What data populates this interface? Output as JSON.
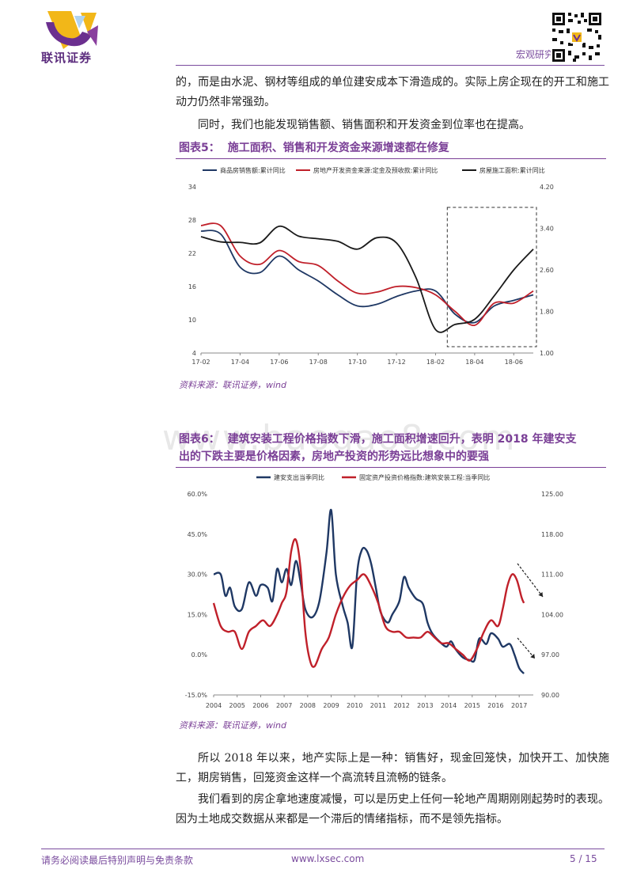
{
  "header": {
    "logo_text": "联讯证券",
    "section": "宏观研究"
  },
  "paragraphs": {
    "p1": "的，而是由水泥、钢材等组成的单位建安成本下滑造成的。实际上房企现在的开工和施工动力仍然非常强劲。",
    "p2": "同时，我们也能发现销售额、销售面积和开发资金到位率也在提高。",
    "p3": "所以 2018 年以来，地产实际上是一种：销售好，现金回笼快，加快开工、加快施工，期房销售，回笼资金这样一个高流转且流畅的链条。",
    "p4": "我们看到的房企拿地速度减慢，可以是历史上任何一轮地产周期刚刚起势时的表现。因为土地成交数据从来都是一个滞后的情绪指标，而不是领先指标。"
  },
  "figure5": {
    "label": "图表5：",
    "title": "施工面积、销售和开发资金来源增速都在修复",
    "source": "资料来源：联讯证券，wind"
  },
  "figure6": {
    "label": "图表6：",
    "title_line1": "建筑安装工程价格指数下滑，施工面积增速回升，表明 2018 年建安支",
    "title_line2": "出的下跌主要是价格因素，房地产投资的形势远比想象中的要强",
    "source": "资料来源：联讯证券，wind"
  },
  "watermark": "www.baogao8.com",
  "footer": {
    "left": "请务必阅读最后特别声明与免责条款",
    "center": "www.lxsec.com",
    "page": "5 / 15"
  },
  "colors": {
    "navy": "#1f3864",
    "red": "#c0202a",
    "black": "#1a1a1a",
    "purple": "#7a3f96"
  },
  "chart_data": [
    {
      "type": "line",
      "title": "施工面积、销售和开发资金来源增速都在修复",
      "x": [
        "17-02",
        "17-03",
        "17-04",
        "17-05",
        "17-06",
        "17-07",
        "17-08",
        "17-09",
        "17-10",
        "17-11",
        "17-12",
        "18-01",
        "18-02",
        "18-03",
        "18-04",
        "18-05",
        "18-06",
        "18-07"
      ],
      "xticks": [
        "17-02",
        "17-04",
        "17-06",
        "17-08",
        "17-10",
        "17-12",
        "18-02",
        "18-04",
        "18-06"
      ],
      "ylim_left": [
        4,
        34
      ],
      "yticks_left": [
        "4",
        "10",
        "16",
        "22",
        "28",
        "34"
      ],
      "ylim_right": [
        1.0,
        4.2
      ],
      "yticks_right": [
        "1.00",
        "1.80",
        "2.60",
        "3.40",
        "4.20"
      ],
      "series": [
        {
          "name": "商品房销售额:累计同比",
          "axis": "left",
          "color": "#1f3864",
          "values": [
            26,
            25.5,
            19.5,
            18.5,
            21.5,
            19,
            17,
            14.5,
            12.5,
            12.8,
            14.2,
            15.2,
            15.2,
            11,
            9.5,
            12.5,
            13.5,
            14.5
          ]
        },
        {
          "name": "房地产开发资金来源:定金及预收款:累计同比",
          "axis": "left",
          "color": "#c0202a",
          "values": [
            27,
            27,
            21.5,
            20,
            22.5,
            20.5,
            19.8,
            17,
            14.8,
            15,
            16,
            15.8,
            14.5,
            11.5,
            9,
            13,
            13,
            15.2
          ]
        },
        {
          "name": "房屋施工面积:累计同比",
          "axis": "right",
          "color": "#1a1a1a",
          "values": [
            3.24,
            3.14,
            3.13,
            3.12,
            3.44,
            3.25,
            3.2,
            3.15,
            3.0,
            3.22,
            3.12,
            2.45,
            1.45,
            1.55,
            1.65,
            2.1,
            2.6,
            3.0
          ]
        }
      ],
      "annotation": "dashed box highlighting 18-03 to 18-07"
    },
    {
      "type": "line",
      "title": "建筑安装工程价格指数下滑，施工面积增速回升",
      "x_range": [
        2004,
        2017.6
      ],
      "xticks": [
        "2004",
        "2005",
        "2006",
        "2007",
        "2008",
        "2009",
        "2010",
        "2011",
        "2012",
        "2013",
        "2014",
        "2015",
        "2016",
        "2017"
      ],
      "ylim_left": [
        -15,
        60
      ],
      "yticks_left": [
        "-15.0%",
        "0.0%",
        "15.0%",
        "30.0%",
        "45.0%",
        "60.0%"
      ],
      "ylim_right": [
        90,
        125
      ],
      "yticks_right": [
        "90.00",
        "97.00",
        "104.00",
        "111.00",
        "118.00",
        "125.00"
      ],
      "series": [
        {
          "name": "建安支出当季同比",
          "axis": "left",
          "color": "#1f3864",
          "points": [
            [
              2004.0,
              30
            ],
            [
              2004.3,
              30
            ],
            [
              2004.5,
              22
            ],
            [
              2004.7,
              25
            ],
            [
              2004.9,
              18
            ],
            [
              2005.2,
              17
            ],
            [
              2005.5,
              27
            ],
            [
              2005.8,
              22
            ],
            [
              2006.0,
              26
            ],
            [
              2006.3,
              25
            ],
            [
              2006.5,
              20
            ],
            [
              2006.7,
              32
            ],
            [
              2006.9,
              27
            ],
            [
              2007.1,
              32
            ],
            [
              2007.3,
              26
            ],
            [
              2007.5,
              35
            ],
            [
              2007.7,
              27
            ],
            [
              2007.9,
              17
            ],
            [
              2008.2,
              14
            ],
            [
              2008.5,
              20
            ],
            [
              2008.8,
              38
            ],
            [
              2009.0,
              54
            ],
            [
              2009.2,
              30
            ],
            [
              2009.5,
              18
            ],
            [
              2009.7,
              12
            ],
            [
              2009.9,
              3
            ],
            [
              2010.1,
              30
            ],
            [
              2010.3,
              39
            ],
            [
              2010.5,
              39
            ],
            [
              2010.7,
              34
            ],
            [
              2010.9,
              25
            ],
            [
              2011.1,
              16
            ],
            [
              2011.4,
              12
            ],
            [
              2011.6,
              15
            ],
            [
              2011.9,
              20
            ],
            [
              2012.1,
              29
            ],
            [
              2012.3,
              25
            ],
            [
              2012.6,
              21
            ],
            [
              2012.9,
              19
            ],
            [
              2013.1,
              12
            ],
            [
              2013.3,
              8
            ],
            [
              2013.6,
              5
            ],
            [
              2013.9,
              3
            ],
            [
              2014.1,
              5
            ],
            [
              2014.3,
              2
            ],
            [
              2014.6,
              -1
            ],
            [
              2014.9,
              -2
            ],
            [
              2015.1,
              -2
            ],
            [
              2015.3,
              6
            ],
            [
              2015.6,
              4
            ],
            [
              2015.8,
              8
            ],
            [
              2016.1,
              6
            ],
            [
              2016.3,
              3
            ],
            [
              2016.6,
              4
            ],
            [
              2016.8,
              0
            ],
            [
              2017.0,
              -5
            ],
            [
              2017.2,
              -7
            ]
          ]
        },
        {
          "name": "固定资产投资价格指数:建筑安装工程:当季同比",
          "axis": "right",
          "color": "#c0202a",
          "points": [
            [
              2004.0,
              106
            ],
            [
              2004.3,
              102
            ],
            [
              2004.6,
              101
            ],
            [
              2004.9,
              101
            ],
            [
              2005.2,
              98
            ],
            [
              2005.5,
              101
            ],
            [
              2005.8,
              102
            ],
            [
              2006.1,
              103
            ],
            [
              2006.4,
              102
            ],
            [
              2006.7,
              104
            ],
            [
              2006.9,
              106
            ],
            [
              2007.1,
              108
            ],
            [
              2007.3,
              115
            ],
            [
              2007.5,
              117
            ],
            [
              2007.7,
              112
            ],
            [
              2007.9,
              101
            ],
            [
              2008.1,
              96
            ],
            [
              2008.3,
              95
            ],
            [
              2008.6,
              98
            ],
            [
              2008.9,
              100
            ],
            [
              2009.2,
              104
            ],
            [
              2009.5,
              107
            ],
            [
              2009.8,
              109
            ],
            [
              2010.1,
              110
            ],
            [
              2010.4,
              111
            ],
            [
              2010.7,
              109
            ],
            [
              2011.0,
              106
            ],
            [
              2011.3,
              102
            ],
            [
              2011.6,
              101
            ],
            [
              2011.9,
              101
            ],
            [
              2012.2,
              100
            ],
            [
              2012.5,
              100
            ],
            [
              2012.8,
              100
            ],
            [
              2013.1,
              101
            ],
            [
              2013.4,
              100
            ],
            [
              2013.7,
              99
            ],
            [
              2014.0,
              99
            ],
            [
              2014.3,
              98
            ],
            [
              2014.6,
              97
            ],
            [
              2014.9,
              96
            ],
            [
              2015.2,
              98
            ],
            [
              2015.5,
              101
            ],
            [
              2015.8,
              103
            ],
            [
              2016.1,
              102
            ],
            [
              2016.3,
              105
            ],
            [
              2016.5,
              109
            ],
            [
              2016.7,
              111
            ],
            [
              2016.9,
              110
            ],
            [
              2017.1,
              107
            ],
            [
              2017.2,
              106
            ]
          ]
        }
      ],
      "annotation": "two dashed downward arrows near 2017"
    }
  ]
}
